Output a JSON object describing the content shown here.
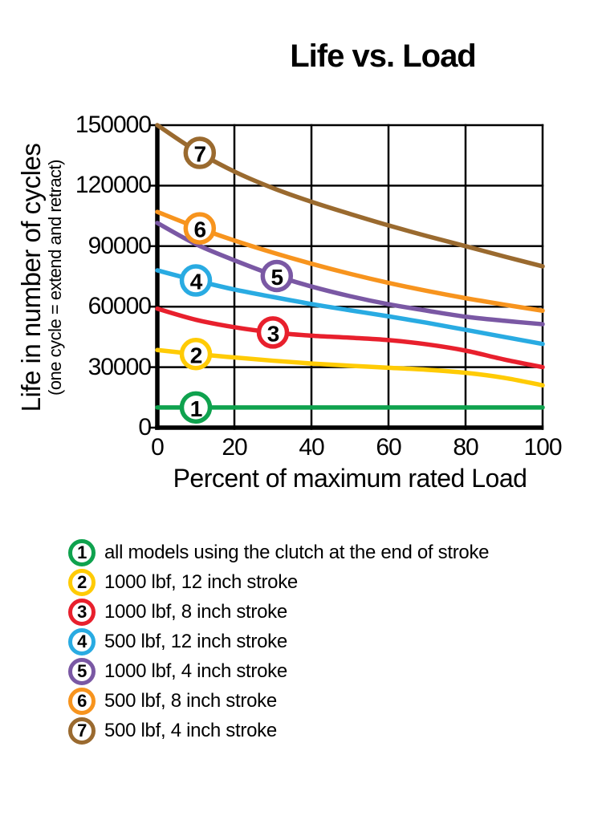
{
  "chart": {
    "title": "Life vs. Load",
    "y_axis": {
      "label": "Life in number of cycles",
      "note": "(one cycle = extend and retract)"
    },
    "x_axis": {
      "label": "Percent of maximum rated Load"
    }
  },
  "chart_data": {
    "type": "line",
    "title": "Life vs. Load",
    "xlabel": "Percent of maximum rated Load",
    "ylabel": "Life in number of cycles",
    "ylabel_note": "(one cycle = extend and retract)",
    "x": [
      0,
      10,
      20,
      30,
      40,
      50,
      60,
      70,
      80,
      90,
      100
    ],
    "x_ticks": [
      0,
      20,
      40,
      60,
      80,
      100
    ],
    "y_ticks": [
      0,
      30000,
      60000,
      90000,
      120000,
      150000
    ],
    "xlim": [
      0,
      100
    ],
    "ylim": [
      0,
      150000
    ],
    "grid": true,
    "legend_position": "below",
    "series": [
      {
        "num": "1",
        "label": "all models using the clutch at the end of stroke",
        "color": "#0FA24E",
        "marker_x": 10,
        "values": [
          10000,
          10000,
          10000,
          10000,
          10000,
          10000,
          10000,
          10000,
          10000,
          10000,
          10000
        ]
      },
      {
        "num": "2",
        "label": "1000 lbf, 12 inch stroke",
        "color": "#FFCB05",
        "marker_x": 10,
        "values": [
          38500,
          36500,
          34800,
          33200,
          31800,
          30700,
          29700,
          28700,
          27200,
          24700,
          21000
        ]
      },
      {
        "num": "3",
        "label": "1000 lbf, 8 inch stroke",
        "color": "#E8202D",
        "marker_x": 30,
        "values": [
          59000,
          53500,
          49800,
          47200,
          45600,
          44600,
          43400,
          41300,
          38200,
          33800,
          30000
        ]
      },
      {
        "num": "4",
        "label": "500 lbf, 12 inch stroke",
        "color": "#29ABE2",
        "marker_x": 10,
        "values": [
          78000,
          73000,
          68500,
          64800,
          61300,
          58200,
          55200,
          52000,
          48500,
          45000,
          41500
        ]
      },
      {
        "num": "5",
        "label": "1000 lbf, 4 inch stroke",
        "color": "#7A58A4",
        "marker_x": 31,
        "values": [
          101500,
          91000,
          83000,
          75800,
          70000,
          65200,
          61200,
          58000,
          55000,
          53000,
          51300
        ]
      },
      {
        "num": "6",
        "label": "500 lbf, 8 inch stroke",
        "color": "#F7941E",
        "marker_x": 11,
        "values": [
          107000,
          99500,
          92800,
          86800,
          81300,
          76300,
          71800,
          67800,
          64200,
          61000,
          58000
        ]
      },
      {
        "num": "7",
        "label": "500 lbf, 4 inch stroke",
        "color": "#9A6A2F",
        "marker_x": 11,
        "values": [
          150000,
          137300,
          127000,
          118800,
          112000,
          106000,
          100300,
          95000,
          90000,
          84900,
          80000
        ]
      }
    ]
  }
}
